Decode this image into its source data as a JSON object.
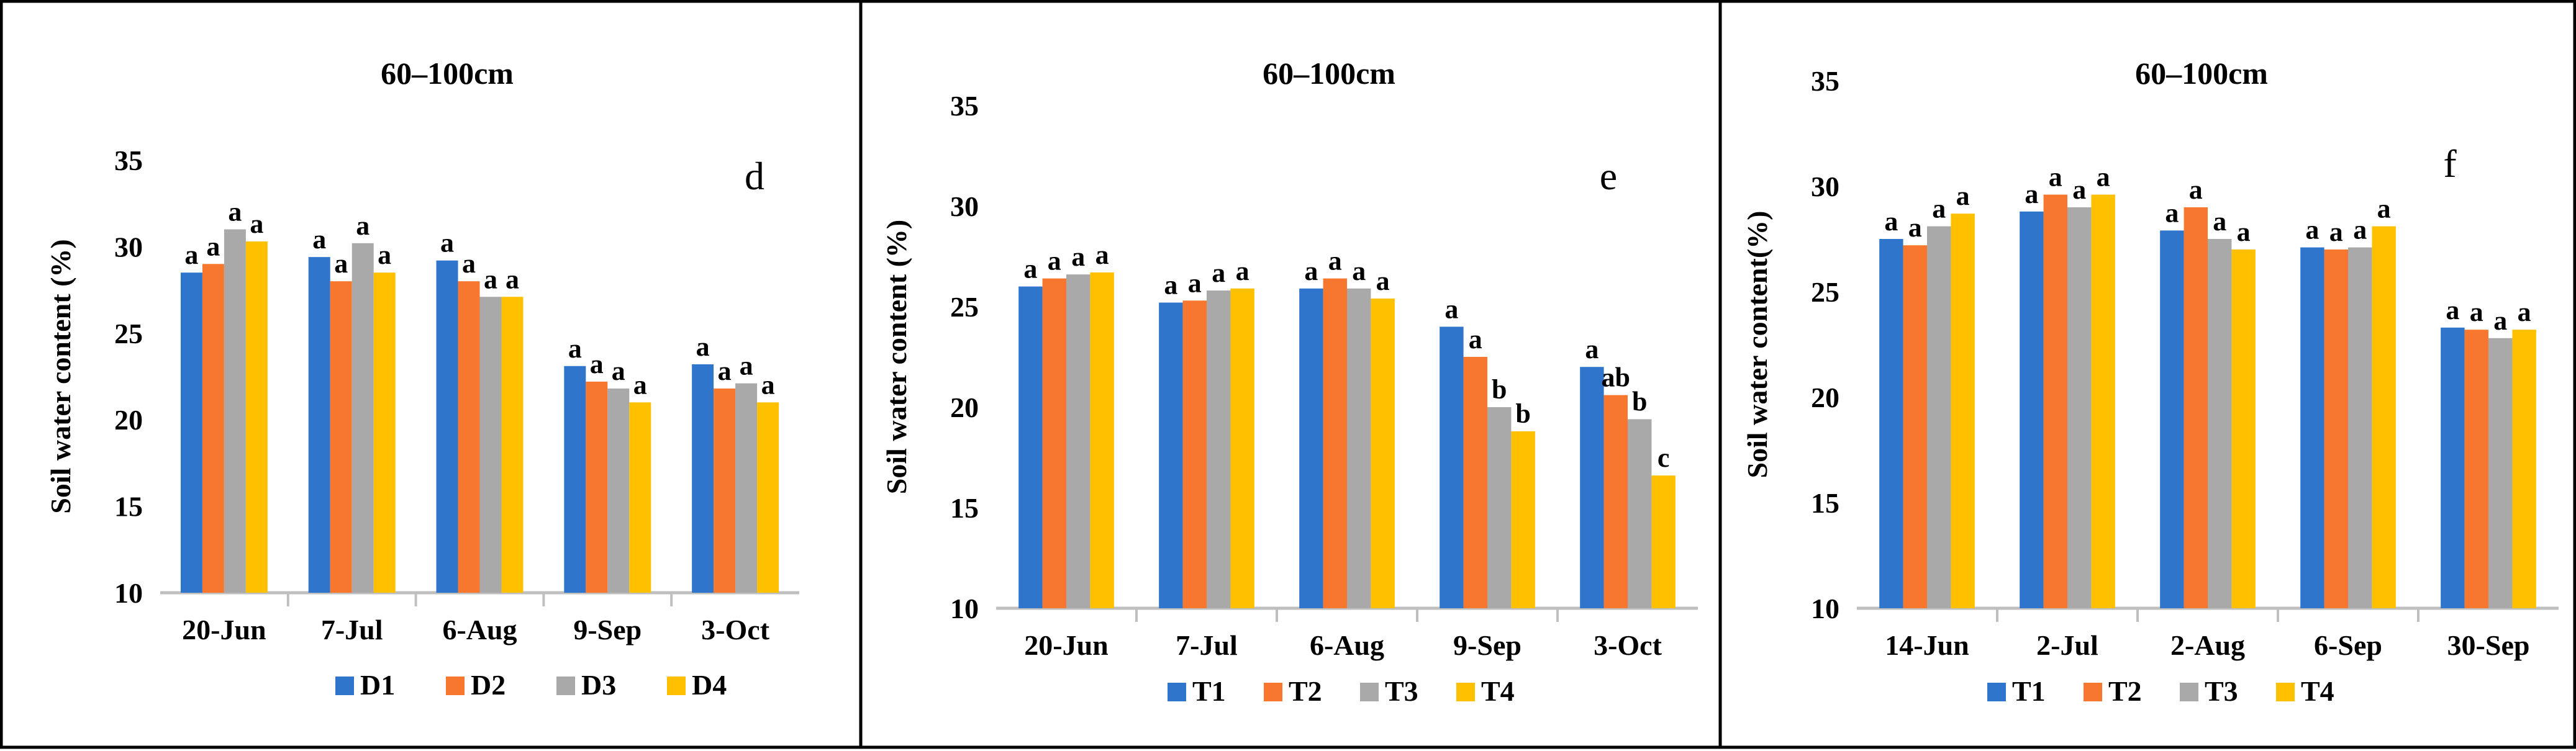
{
  "colors": {
    "D1": "#2F75CB",
    "D2": "#F8772F",
    "D3": "#A9A9A9",
    "D4": "#FFC000",
    "axis": "#BFBFBF"
  },
  "chart_data": [
    {
      "type": "bar",
      "title": "60–100cm",
      "panel_letter": "d",
      "ylabel": "Soil water content (%)",
      "ylim": [
        10,
        35
      ],
      "yticks": [
        "10",
        "15",
        "20",
        "25",
        "30",
        "35"
      ],
      "categories": [
        "20-Jun",
        "7-Jul",
        "6-Aug",
        "9-Sep",
        "3-Oct"
      ],
      "series": [
        {
          "name": "D1",
          "values": [
            28.5,
            29.4,
            29.2,
            23.1,
            23.2
          ]
        },
        {
          "name": "D2",
          "values": [
            29.0,
            28.0,
            28.0,
            22.2,
            21.8
          ]
        },
        {
          "name": "D3",
          "values": [
            31.0,
            30.2,
            27.1,
            21.8,
            22.1
          ]
        },
        {
          "name": "D4",
          "values": [
            30.3,
            28.5,
            27.1,
            21.0,
            21.0
          ]
        }
      ],
      "significance": [
        [
          "a",
          "a",
          "a",
          "a"
        ],
        [
          "a",
          "a",
          "a",
          "a"
        ],
        [
          "a",
          "a",
          "a",
          "a"
        ],
        [
          "a",
          "a",
          "a",
          "a"
        ],
        [
          "a",
          "a",
          "a",
          "a"
        ]
      ],
      "legend_position": "bottom",
      "grid": false
    },
    {
      "type": "bar",
      "title": "60–100cm",
      "panel_letter": "e",
      "ylabel": "Soil water content (%)",
      "ylim": [
        10,
        35
      ],
      "yticks": [
        "10",
        "15",
        "20",
        "25",
        "30",
        "35"
      ],
      "categories": [
        "20-Jun",
        "7-Jul",
        "6-Aug",
        "9-Sep",
        "3-Oct"
      ],
      "series": [
        {
          "name": "T1",
          "values": [
            26.0,
            25.2,
            25.9,
            24.0,
            22.0
          ]
        },
        {
          "name": "T2",
          "values": [
            26.4,
            25.3,
            26.4,
            22.5,
            20.6
          ]
        },
        {
          "name": "T3",
          "values": [
            26.6,
            25.8,
            25.9,
            20.0,
            19.4
          ]
        },
        {
          "name": "T4",
          "values": [
            26.7,
            25.9,
            25.4,
            18.8,
            16.6
          ]
        }
      ],
      "significance": [
        [
          "a",
          "a",
          "a",
          "a"
        ],
        [
          "a",
          "a",
          "a",
          "a"
        ],
        [
          "a",
          "a",
          "a",
          "a"
        ],
        [
          "a",
          "a",
          "b",
          "b"
        ],
        [
          "a",
          "ab",
          "b",
          "c"
        ]
      ],
      "legend_position": "bottom",
      "grid": false
    },
    {
      "type": "bar",
      "title": "60–100cm",
      "panel_letter": "f",
      "ylabel": "Soil water content(%)",
      "ylim": [
        10,
        35
      ],
      "yticks": [
        "10",
        "15",
        "20",
        "25",
        "30",
        "35"
      ],
      "categories": [
        "14-Jun",
        "2-Jul",
        "2-Aug",
        "6-Sep",
        "30-Sep"
      ],
      "series": [
        {
          "name": "T1",
          "values": [
            27.5,
            28.8,
            27.9,
            27.1,
            23.3
          ]
        },
        {
          "name": "T2",
          "values": [
            27.2,
            29.6,
            29.0,
            27.0,
            23.2
          ]
        },
        {
          "name": "T3",
          "values": [
            28.1,
            29.0,
            27.5,
            27.1,
            22.8
          ]
        },
        {
          "name": "T4",
          "values": [
            28.7,
            29.6,
            27.0,
            28.1,
            23.2
          ]
        }
      ],
      "significance": [
        [
          "a",
          "a",
          "a",
          "a"
        ],
        [
          "a",
          "a",
          "a",
          "a"
        ],
        [
          "a",
          "a",
          "a",
          "a"
        ],
        [
          "a",
          "a",
          "a",
          "a"
        ],
        [
          "a",
          "a",
          "a",
          "a"
        ]
      ],
      "legend_position": "bottom",
      "grid": false
    }
  ]
}
